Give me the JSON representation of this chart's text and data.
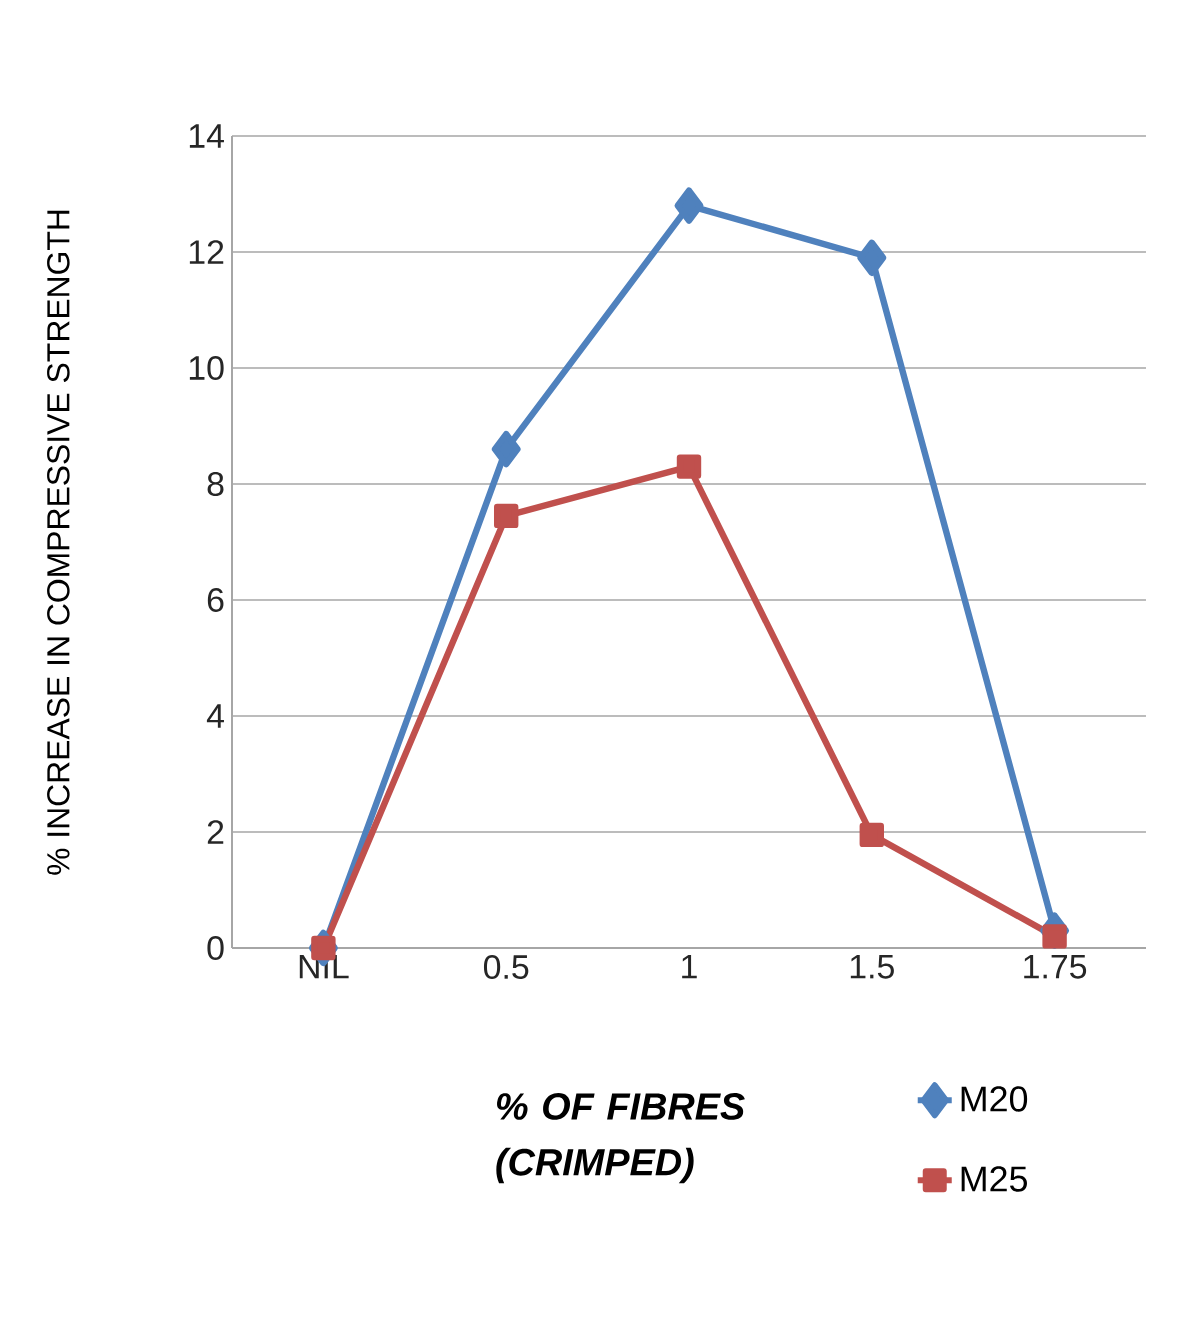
{
  "chart_data": {
    "type": "line",
    "xlabel": "*% OF FIBRES (CRIMPED)*",
    "ylabel": "% INCREASE IN COMPRESSIVE STRENGTH",
    "categories": [
      "NIL",
      "0.5",
      "1",
      "1.5",
      "1.75"
    ],
    "series": [
      {
        "name": "M20",
        "color": "#4f81bd",
        "marker": "diamond",
        "values": [
          0,
          8.6,
          12.8,
          11.9,
          0.3
        ]
      },
      {
        "name": "M25",
        "color": "#c0504d",
        "marker": "square",
        "values": [
          0,
          7.45,
          8.3,
          1.95,
          0.2
        ]
      }
    ],
    "ylim": [
      0,
      14
    ],
    "yticks": [
      0,
      2,
      4,
      6,
      8,
      10,
      12,
      14
    ],
    "grid": "y",
    "legend": "bottom right",
    "line_style": "solid"
  }
}
